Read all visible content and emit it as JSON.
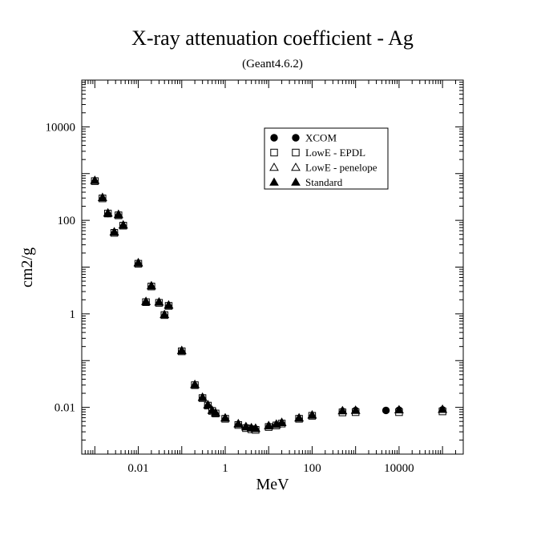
{
  "chart_data": {
    "type": "scatter",
    "title": "X-ray attenuation coefficient - Ag",
    "subtitle": "(Geant4.6.2)",
    "xlabel": "MeV",
    "ylabel": "cm2/g",
    "x_scale": "log",
    "y_scale": "log",
    "xlim": [
      0.0005,
      300000
    ],
    "ylim": [
      0.001,
      100000
    ],
    "x_ticks": [
      0.01,
      1,
      100,
      10000
    ],
    "x_tick_labels": [
      "0.01",
      "1",
      "100",
      "10000"
    ],
    "y_ticks": [
      0.01,
      1,
      100,
      10000
    ],
    "y_tick_labels": [
      "0.01",
      "1",
      "100",
      "10000"
    ],
    "grid": false,
    "legend_position": "top-right",
    "series": [
      {
        "name": "XCOM",
        "marker": "circle",
        "x": [
          0.001,
          0.0015,
          0.002,
          0.0028,
          0.0035,
          0.0045,
          0.01,
          0.015,
          0.02,
          0.03,
          0.04,
          0.05,
          0.1,
          0.2,
          0.3,
          0.4,
          0.5,
          0.6,
          1,
          2,
          3,
          4,
          5,
          10,
          15,
          20,
          50,
          100,
          500,
          1000,
          5000,
          10000,
          100000
        ],
        "y": [
          700,
          300,
          140,
          55,
          130,
          78,
          12,
          1.8,
          3.9,
          1.75,
          0.95,
          1.5,
          0.16,
          0.03,
          0.016,
          0.011,
          0.0085,
          0.0075,
          0.0058,
          0.0043,
          0.0037,
          0.0035,
          0.0034,
          0.0039,
          0.0042,
          0.0046,
          0.0058,
          0.0067,
          0.0082,
          0.0085,
          0.0086,
          0.0087,
          0.0088
        ]
      },
      {
        "name": "LowE - EPDL",
        "marker": "square",
        "x": [
          0.001,
          0.0015,
          0.002,
          0.0028,
          0.0035,
          0.0045,
          0.01,
          0.015,
          0.02,
          0.03,
          0.04,
          0.05,
          0.1,
          0.2,
          0.3,
          0.4,
          0.5,
          0.6,
          1,
          2,
          3,
          4,
          5,
          10,
          15,
          20,
          50,
          100,
          500,
          1000,
          10000,
          100000
        ],
        "y": [
          690,
          295,
          140,
          54,
          128,
          77,
          11.8,
          1.78,
          3.85,
          1.72,
          0.94,
          1.48,
          0.158,
          0.0298,
          0.0158,
          0.0109,
          0.0084,
          0.0074,
          0.0057,
          0.0042,
          0.0036,
          0.0034,
          0.0033,
          0.0038,
          0.0041,
          0.0045,
          0.0057,
          0.0066,
          0.0078,
          0.0079,
          0.0079,
          0.0082
        ]
      },
      {
        "name": "LowE - penelope",
        "marker": "triangle-open",
        "x": [
          0.001,
          0.0015,
          0.002,
          0.0028,
          0.0035,
          0.0045,
          0.01,
          0.015,
          0.02,
          0.03,
          0.04,
          0.05,
          0.1,
          0.2,
          0.3,
          0.4,
          0.5,
          0.6,
          1,
          2,
          3,
          4,
          5,
          10,
          15,
          20,
          50,
          100,
          500,
          1000,
          10000,
          100000
        ],
        "y": [
          710,
          305,
          142,
          56,
          132,
          79,
          12.2,
          1.82,
          3.95,
          1.78,
          0.96,
          1.52,
          0.162,
          0.0305,
          0.0162,
          0.0112,
          0.0086,
          0.0076,
          0.0059,
          0.0044,
          0.0038,
          0.0036,
          0.0035,
          0.004,
          0.0043,
          0.0047,
          0.0059,
          0.0068,
          0.0084,
          0.0086,
          0.0088,
          0.009
        ]
      },
      {
        "name": "Standard",
        "marker": "triangle",
        "x": [
          0.001,
          0.0015,
          0.002,
          0.0028,
          0.0035,
          0.0045,
          0.01,
          0.015,
          0.02,
          0.03,
          0.04,
          0.05,
          0.1,
          0.2,
          0.3,
          0.4,
          0.5,
          0.6,
          1,
          2,
          3,
          4,
          5,
          10,
          15,
          20,
          50,
          100,
          500,
          1000,
          10000,
          100000
        ],
        "y": [
          720,
          310,
          145,
          57,
          135,
          80,
          12.5,
          1.85,
          4.0,
          1.8,
          0.97,
          1.55,
          0.165,
          0.031,
          0.0165,
          0.0114,
          0.0087,
          0.0077,
          0.006,
          0.0045,
          0.0039,
          0.0037,
          0.0036,
          0.0041,
          0.0044,
          0.0048,
          0.006,
          0.0069,
          0.0085,
          0.0087,
          0.0089,
          0.0091
        ]
      }
    ]
  }
}
